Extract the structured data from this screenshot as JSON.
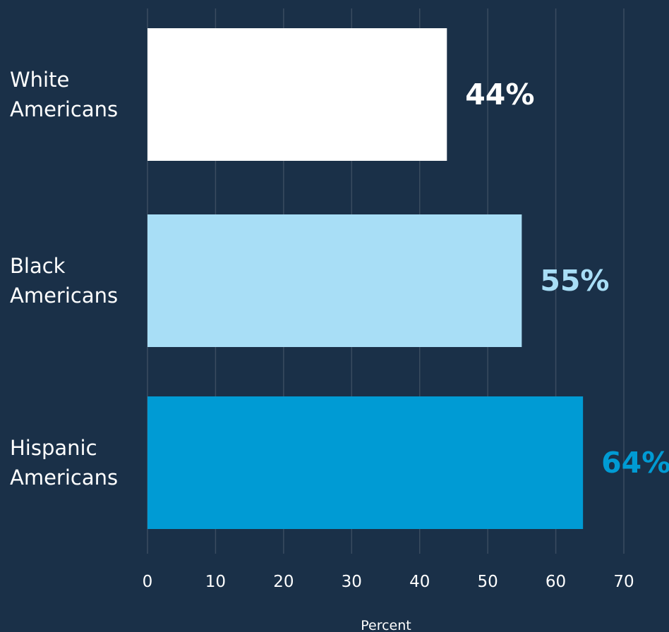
{
  "chart_data": {
    "type": "bar",
    "orientation": "horizontal",
    "categories": [
      [
        "White",
        "Americans"
      ],
      [
        "Black",
        "Americans"
      ],
      [
        "Hispanic",
        "Americans"
      ]
    ],
    "values": [
      44,
      55,
      64
    ],
    "value_labels": [
      "44%",
      "55%",
      "64%"
    ],
    "bar_colors": [
      "#ffffff",
      "#a8def6",
      "#009bd4"
    ],
    "xlabel": "Percent",
    "xlim": [
      0,
      70
    ],
    "xticks": [
      0,
      10,
      20,
      30,
      40,
      50,
      60,
      70
    ],
    "grid": "vertical"
  }
}
